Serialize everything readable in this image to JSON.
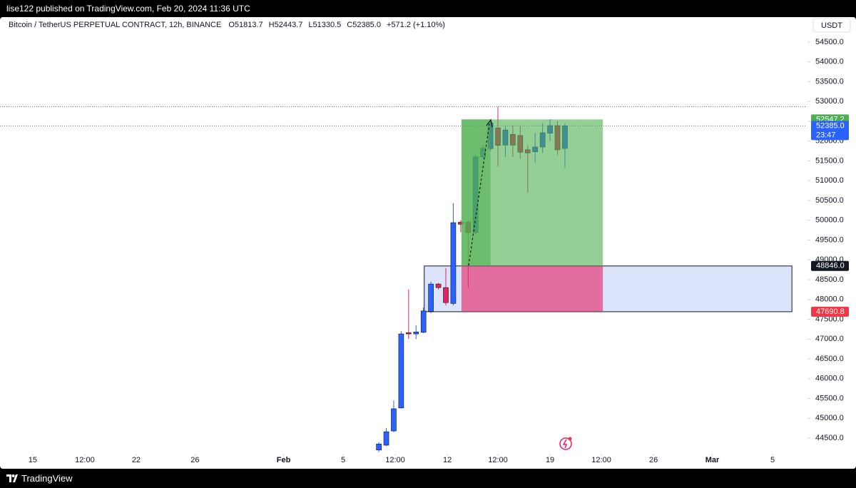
{
  "header": {
    "published": "lise122 published on TradingView.com, Feb 20, 2024 11:36 UTC"
  },
  "footer": {
    "brand": "TradingView"
  },
  "chart_data": {
    "type": "candlestick",
    "title": "Bitcoin / TetherUS PERPETUAL CONTRACT, 12h, BINANCE",
    "ohlc_header": [
      "O51813.7",
      "H52443.7",
      "L51330.5",
      "C52385.0"
    ],
    "change": "+571.2 (+1.10%)",
    "currency": "USDT",
    "up_color": "#2962ff",
    "down_color": "#e0245e",
    "x": [
      0,
      1,
      2,
      3,
      4,
      5,
      6,
      7,
      8,
      9,
      10,
      11,
      12,
      13,
      14,
      15,
      16,
      17,
      18,
      19,
      20,
      21,
      22,
      23,
      24,
      25
    ],
    "open": [
      44200,
      44320,
      44680,
      45260,
      47160,
      47130,
      47170,
      47700,
      48390,
      48300,
      47900,
      49950,
      49950,
      49690,
      51600,
      51810,
      52330,
      51900,
      52170,
      52140,
      51780,
      51730,
      51850,
      52200,
      52390,
      51813.7
    ],
    "high": [
      44400,
      44750,
      45450,
      47200,
      48250,
      47350,
      47800,
      48450,
      48420,
      48790,
      50430,
      50000,
      50000,
      51650,
      51900,
      52550,
      52870,
      52400,
      52400,
      52400,
      51900,
      52200,
      52450,
      52550,
      52500,
      52443.7
    ],
    "low": [
      44150,
      44300,
      44650,
      45250,
      47000,
      47000,
      47150,
      47650,
      48250,
      47850,
      47850,
      49700,
      48300,
      49650,
      51550,
      51750,
      51360,
      51600,
      51600,
      51550,
      50700,
      51450,
      51700,
      52000,
      51650,
      51330.5
    ],
    "close": [
      44350,
      44660,
      45240,
      47130,
      47130,
      47180,
      47710,
      48390,
      48300,
      47920,
      49940,
      49900,
      49690,
      51600,
      51820,
      52460,
      51890,
      52280,
      51900,
      51720,
      51700,
      51850,
      52210,
      52390,
      51780,
      52385
    ],
    "xlim": [
      -50.9,
      57.4
    ],
    "xticks": [
      {
        "value": -46.5,
        "label": "15"
      },
      {
        "value": -39.5,
        "label": "12:00"
      },
      {
        "value": -32.6,
        "label": "22"
      },
      {
        "value": -24.7,
        "label": "26"
      },
      {
        "value": -12.8,
        "label": "Feb"
      },
      {
        "value": -4.8,
        "label": "5"
      },
      {
        "value": 2.2,
        "label": "12:00"
      },
      {
        "value": 9.2,
        "label": "12"
      },
      {
        "value": 16,
        "label": "12:00"
      },
      {
        "value": 23,
        "label": "19"
      },
      {
        "value": 29.9,
        "label": "12:00"
      },
      {
        "value": 36.9,
        "label": "26"
      },
      {
        "value": 44.8,
        "label": "Mar"
      },
      {
        "value": 52.9,
        "label": "5"
      }
    ],
    "ylim": [
      44140,
      55130
    ],
    "yticks": [
      {
        "value": 44500,
        "label": "44500.0"
      },
      {
        "value": 45000,
        "label": "45000.0"
      },
      {
        "value": 45500,
        "label": "45500.0"
      },
      {
        "value": 46000,
        "label": "46000.0"
      },
      {
        "value": 46500,
        "label": "46500.0"
      },
      {
        "value": 47000,
        "label": "47000.0"
      },
      {
        "value": 47500,
        "label": "47500.0"
      },
      {
        "value": 48000,
        "label": "48000.0"
      },
      {
        "value": 48500,
        "label": "48500.0"
      },
      {
        "value": 49000,
        "label": "49000.0"
      },
      {
        "value": 49500,
        "label": "49500.0"
      },
      {
        "value": 50000,
        "label": "50000.0"
      },
      {
        "value": 50500,
        "label": "50500.0"
      },
      {
        "value": 51000,
        "label": "51000.0"
      },
      {
        "value": 51500,
        "label": "51500.0"
      },
      {
        "value": 52000,
        "label": "52000.0"
      },
      {
        "value": 52500,
        "label": "52500.0"
      },
      {
        "value": 53000,
        "label": "53000.0"
      },
      {
        "value": 53500,
        "label": "53500.0"
      },
      {
        "value": 54000,
        "label": "54000.0"
      },
      {
        "value": 54500,
        "label": "54500.0"
      }
    ],
    "dotted_lines": [
      52870,
      52385
    ],
    "zone": {
      "top": 48846,
      "bottom": 47690.8,
      "start": 6.1,
      "end": 55.5,
      "color": "#dbe4fb"
    },
    "position": {
      "target": 52547.2,
      "entry": 48846,
      "stop": 47690.8,
      "start": 11.1,
      "end": 30.1,
      "reached": 15,
      "profit_color": "#4caf50",
      "loss_color": "#e91e63"
    },
    "price_labels": [
      {
        "value": 52547.2,
        "label": "52547.2",
        "color": "#4caf50"
      },
      {
        "value": 52385,
        "label": "52385.0",
        "color": "#2962ff",
        "countdown": "23:47"
      },
      {
        "value": 48846,
        "label": "48846.0",
        "color": "#131722"
      },
      {
        "value": 47690.8,
        "label": "47690.8",
        "color": "#f23645"
      }
    ]
  }
}
